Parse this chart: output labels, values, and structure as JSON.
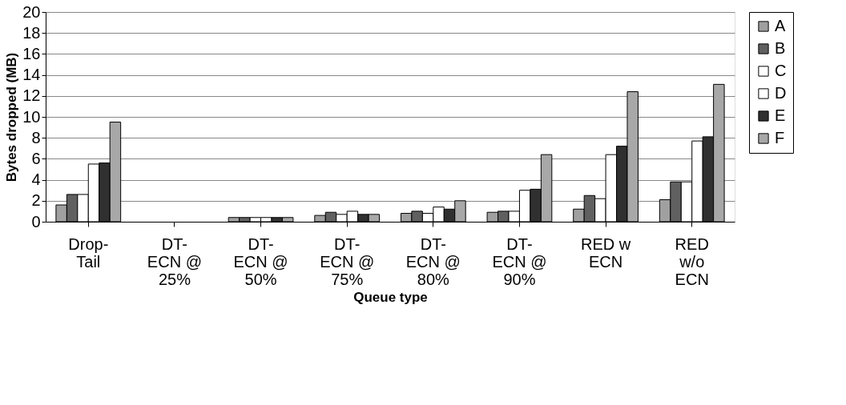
{
  "chart_data": {
    "type": "bar",
    "xlabel": "Queue type",
    "ylabel": "Bytes dropped (MB)",
    "categories": [
      "Drop-Tail",
      "DT-ECN @ 25%",
      "DT-ECN @ 50%",
      "DT-ECN @ 75%",
      "DT-ECN @ 80%",
      "DT-ECN @ 90%",
      "RED w ECN",
      "RED w/o ECN"
    ],
    "series": [
      {
        "name": "A",
        "color": "#a0a0a0",
        "values": [
          1.6,
          0,
          0.4,
          0.6,
          0.8,
          0.9,
          1.2,
          2.1
        ]
      },
      {
        "name": "B",
        "color": "#606060",
        "values": [
          2.6,
          0,
          0.4,
          0.9,
          1.0,
          1.0,
          2.5,
          3.8
        ]
      },
      {
        "name": "C",
        "color": "#ffffff",
        "values": [
          2.6,
          0,
          0.4,
          0.7,
          0.8,
          1.0,
          2.2,
          3.8
        ]
      },
      {
        "name": "D",
        "color": "#ffffff",
        "values": [
          5.5,
          0,
          0.4,
          1.0,
          1.4,
          3.0,
          6.4,
          7.7
        ]
      },
      {
        "name": "E",
        "color": "#303030",
        "values": [
          5.6,
          0,
          0.4,
          0.7,
          1.2,
          3.1,
          7.2,
          8.1
        ]
      },
      {
        "name": "F",
        "color": "#a8a8a8",
        "values": [
          9.5,
          0,
          0.4,
          0.7,
          2.0,
          6.4,
          12.4,
          13.1
        ]
      }
    ],
    "ylim": [
      0,
      20
    ],
    "yticks": [
      0,
      2,
      4,
      6,
      8,
      10,
      12,
      14,
      16,
      18,
      20
    ],
    "grid": "y",
    "legend": "right"
  }
}
